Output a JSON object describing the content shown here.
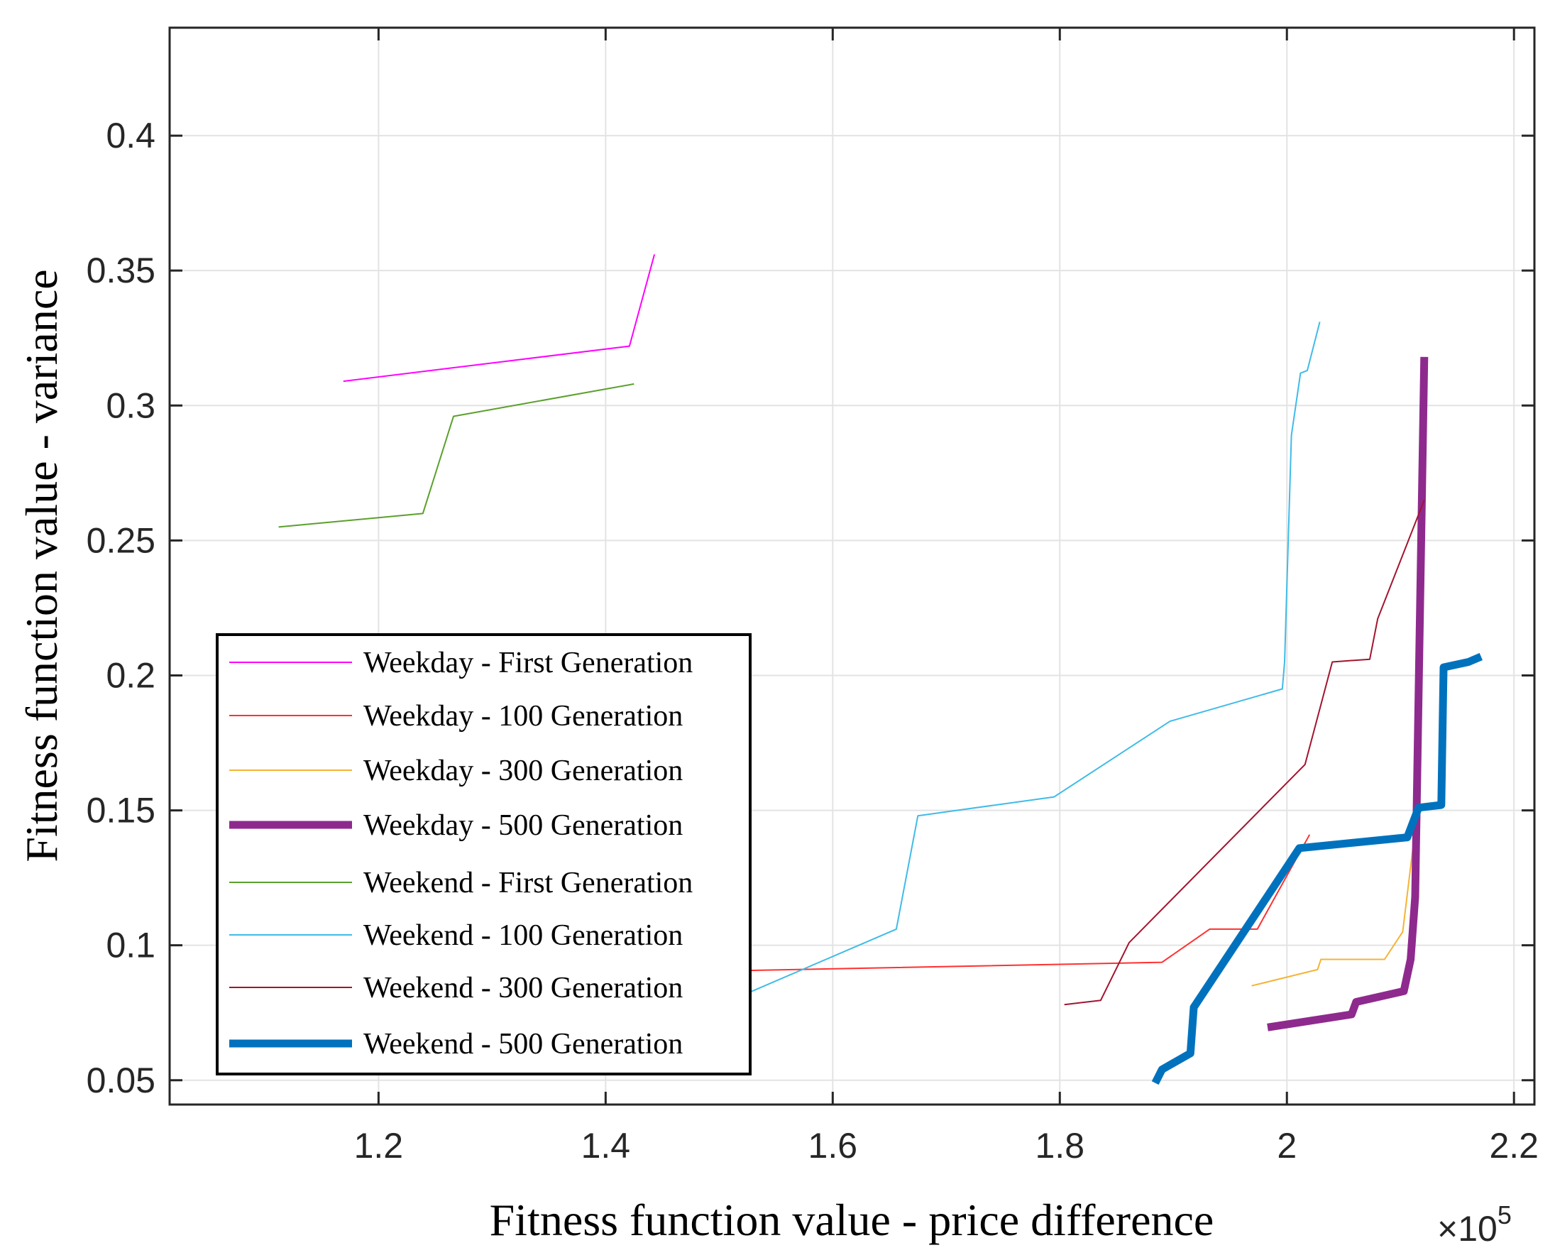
{
  "chart_data": {
    "type": "line",
    "title": "",
    "xlabel": "Fitness function value - price difference",
    "ylabel": "Fitness function value - variance",
    "x_exponent_label": "×10",
    "x_exponent_power": "5",
    "xlim": [
      1.016,
      2.218
    ],
    "ylim": [
      0.041,
      0.44
    ],
    "xticks": [
      1.2,
      1.4,
      1.6,
      1.8,
      2.0,
      2.2
    ],
    "xtick_labels": [
      "1.2",
      "1.4",
      "1.6",
      "1.8",
      "2",
      "2.2"
    ],
    "yticks": [
      0.05,
      0.1,
      0.15,
      0.2,
      0.25,
      0.3,
      0.35,
      0.4
    ],
    "ytick_labels": [
      "0.05",
      "0.1",
      "0.15",
      "0.2",
      "0.25",
      "0.3",
      "0.35",
      "0.4"
    ],
    "grid": true,
    "legend_position": "lower-left",
    "series": [
      {
        "name": "Weekday - First Generation",
        "color": "#ff00ff",
        "width": 1,
        "x": [
          1.169,
          1.421,
          1.443
        ],
        "y": [
          0.309,
          0.322,
          0.356
        ]
      },
      {
        "name": "Weekday - 100 Generation",
        "color": "#ff3030",
        "width": 1,
        "x": [
          1.5,
          1.529,
          1.89,
          1.932,
          1.974,
          2.02
        ],
        "y": [
          0.0905,
          0.0907,
          0.0937,
          0.106,
          0.106,
          0.141
        ]
      },
      {
        "name": "Weekday - 300 Generation",
        "color": "#f5b335",
        "width": 1,
        "x": [
          1.969,
          2.027,
          2.03,
          2.086,
          2.102,
          2.111
        ],
        "y": [
          0.085,
          0.091,
          0.0948,
          0.0948,
          0.105,
          0.136
        ]
      },
      {
        "name": "Weekday - 500 Generation",
        "color": "#8e2a8e",
        "width": 4,
        "x": [
          1.983,
          2.057,
          2.061,
          2.103,
          2.109,
          2.113,
          2.121
        ],
        "y": [
          0.0696,
          0.0744,
          0.079,
          0.083,
          0.0948,
          0.118,
          0.318
        ]
      },
      {
        "name": "Weekend - First Generation",
        "color": "#5aa02c",
        "width": 1,
        "x": [
          1.112,
          1.239,
          1.266,
          1.425
        ],
        "y": [
          0.255,
          0.26,
          0.296,
          0.308
        ]
      },
      {
        "name": "Weekend - 100 Generation",
        "color": "#3fbbe8",
        "width": 1,
        "x": [
          1.5,
          1.529,
          1.656,
          1.675,
          1.795,
          1.897,
          1.996,
          1.998,
          2.004,
          2.012,
          2.018,
          2.029
        ],
        "y": [
          0.078,
          0.083,
          0.106,
          0.148,
          0.155,
          0.183,
          0.195,
          0.205,
          0.289,
          0.312,
          0.313,
          0.331
        ]
      },
      {
        "name": "Weekend - 300 Generation",
        "color": "#a2142f",
        "width": 1,
        "x": [
          1.804,
          1.836,
          1.861,
          2.016,
          2.04,
          2.073,
          2.08,
          2.121
        ],
        "y": [
          0.078,
          0.0796,
          0.101,
          0.167,
          0.205,
          0.206,
          0.221,
          0.265
        ]
      },
      {
        "name": "Weekend - 500 Generation",
        "color": "#0072bd",
        "width": 4,
        "x": [
          1.884,
          1.89,
          1.915,
          1.918,
          2.011,
          2.106,
          2.116,
          2.136,
          2.138,
          2.16,
          2.171
        ],
        "y": [
          0.049,
          0.054,
          0.06,
          0.077,
          0.136,
          0.14,
          0.151,
          0.152,
          0.203,
          0.205,
          0.207
        ]
      }
    ]
  }
}
